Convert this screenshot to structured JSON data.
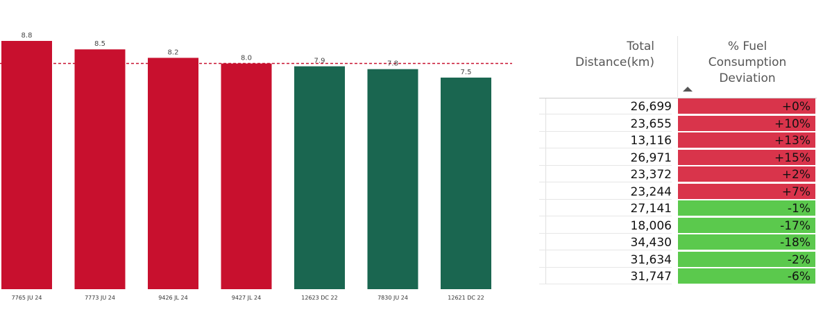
{
  "chart_data": {
    "type": "bar",
    "categories": [
      "7765 JU 24",
      "7773 JU 24",
      "9426 JL 24",
      "9427 JL 24",
      "12623 DC 22",
      "7830 JU 24",
      "12621 DC 22"
    ],
    "values": [
      8.8,
      8.5,
      8.2,
      8.0,
      7.9,
      7.8,
      7.5
    ],
    "value_labels": [
      "8.8",
      "8.5",
      "8.2",
      "8.0",
      "7.9",
      "7.8",
      "7.5"
    ],
    "bar_colors": [
      "#c8102e",
      "#c8102e",
      "#c8102e",
      "#c8102e",
      "#1a6650",
      "#1a6650",
      "#1a6650"
    ],
    "reference_line": 8.0,
    "reference_line_color": "#c8102e",
    "title": "",
    "xlabel": "",
    "ylabel": "",
    "ylim": [
      0,
      8.8
    ],
    "grid": false
  },
  "table": {
    "headers": {
      "distance": [
        "Total",
        "Distance(km)"
      ],
      "deviation": [
        "% Fuel",
        "Consumption",
        "Deviation"
      ]
    },
    "sort_indicator": "ascending",
    "rows": [
      {
        "distance": "26,699",
        "deviation": "+0%",
        "status": "over"
      },
      {
        "distance": "23,655",
        "deviation": "+10%",
        "status": "over"
      },
      {
        "distance": "13,116",
        "deviation": "+13%",
        "status": "over"
      },
      {
        "distance": "26,971",
        "deviation": "+15%",
        "status": "over"
      },
      {
        "distance": "23,372",
        "deviation": "+2%",
        "status": "over"
      },
      {
        "distance": "23,244",
        "deviation": "+7%",
        "status": "over"
      },
      {
        "distance": "27,141",
        "deviation": "-1%",
        "status": "under"
      },
      {
        "distance": "18,006",
        "deviation": "-17%",
        "status": "under"
      },
      {
        "distance": "34,430",
        "deviation": "-18%",
        "status": "under"
      },
      {
        "distance": "31,634",
        "deviation": "-2%",
        "status": "under"
      },
      {
        "distance": "31,747",
        "deviation": "-6%",
        "status": "under"
      }
    ],
    "status_colors": {
      "over": "#d9344b",
      "under": "#5bc94d"
    }
  }
}
